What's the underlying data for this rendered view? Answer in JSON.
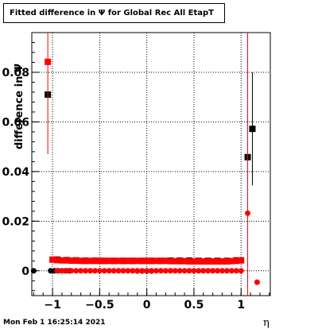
{
  "title": "Fitted difference in  Ψ  for Global Rec All EtapT",
  "timestamp": "Mon Feb  1 16:25:14 2021",
  "chart_data": {
    "type": "scatter",
    "title": "Fitted difference in  Ψ  for Global Rec All EtapT",
    "xlabel": "η",
    "ylabel": "difference in  Ψ",
    "xlim": [
      -1.22,
      1.31
    ],
    "ylim": [
      -0.01,
      0.096
    ],
    "grid": true,
    "x_ticks": [
      -1,
      -0.5,
      0,
      0.5,
      1
    ],
    "x_tick_labels": [
      "−1",
      "−0.5",
      "0",
      "0.5",
      "1"
    ],
    "y_ticks": [
      0,
      0.02,
      0.04,
      0.06,
      0.08
    ],
    "y_tick_labels": [
      "0",
      "0.02",
      "0.04",
      "0.06",
      "0.08"
    ],
    "series": [
      {
        "color": "#000000",
        "marker": "square",
        "points": [
          {
            "x": -1.05,
            "y": 0.071,
            "err": 0.0
          },
          {
            "x": -0.95,
            "y": 0.0045,
            "err": 0.0003
          },
          {
            "x": -0.85,
            "y": 0.0043,
            "err": 0.0003
          },
          {
            "x": -0.75,
            "y": 0.0042,
            "err": 0.0003
          },
          {
            "x": -0.65,
            "y": 0.0041,
            "err": 0.0003
          },
          {
            "x": -0.55,
            "y": 0.0041,
            "err": 0.0003
          },
          {
            "x": -0.45,
            "y": 0.004,
            "err": 0.0003
          },
          {
            "x": -0.35,
            "y": 0.004,
            "err": 0.0003
          },
          {
            "x": -0.25,
            "y": 0.004,
            "err": 0.0003
          },
          {
            "x": -0.15,
            "y": 0.004,
            "err": 0.0003
          },
          {
            "x": -0.05,
            "y": 0.004,
            "err": 0.0003
          },
          {
            "x": 0.05,
            "y": 0.004,
            "err": 0.0003
          },
          {
            "x": 0.15,
            "y": 0.004,
            "err": 0.0003
          },
          {
            "x": 0.25,
            "y": 0.0041,
            "err": 0.0003
          },
          {
            "x": 0.35,
            "y": 0.0041,
            "err": 0.0003
          },
          {
            "x": 0.45,
            "y": 0.0041,
            "err": 0.0003
          },
          {
            "x": 0.55,
            "y": 0.004,
            "err": 0.0003
          },
          {
            "x": 0.65,
            "y": 0.004,
            "err": 0.0003
          },
          {
            "x": 0.75,
            "y": 0.004,
            "err": 0.0003
          },
          {
            "x": 0.85,
            "y": 0.004,
            "err": 0.0003
          },
          {
            "x": 0.95,
            "y": 0.0042,
            "err": 0.0003
          },
          {
            "x": 1.07,
            "y": 0.0458,
            "err": 0.0
          },
          {
            "x": 1.12,
            "y": 0.0572,
            "err": 0.0228
          }
        ]
      },
      {
        "color": "#000000",
        "marker": "circle",
        "points": [
          {
            "x": -1.2,
            "y": 0.0,
            "err": 0.0
          },
          {
            "x": -1.02,
            "y": 0.0,
            "err": 0.0
          },
          {
            "x": -0.98,
            "y": 0.0,
            "err": 0.0
          },
          {
            "x": -0.94,
            "y": 0.0,
            "err": 0.0
          },
          {
            "x": -0.9,
            "y": 0.0,
            "err": 0.0
          },
          {
            "x": -0.86,
            "y": 0.0,
            "err": 0.0
          },
          {
            "x": -0.82,
            "y": 0.0,
            "err": 0.0
          },
          {
            "x": -0.1,
            "y": -0.0001,
            "err": 0.0
          },
          {
            "x": -0.05,
            "y": -0.0001,
            "err": 0.0
          },
          {
            "x": 0.0,
            "y": -0.0001,
            "err": 0.0
          },
          {
            "x": 0.05,
            "y": -0.0001,
            "err": 0.0
          }
        ]
      },
      {
        "color": "#ff0000",
        "marker": "square",
        "points": [
          {
            "x": -1.05,
            "y": 0.0842,
            "err": 0.0372
          },
          {
            "x": -1.0,
            "y": 0.0045,
            "err": 0.0
          },
          {
            "x": -0.95,
            "y": 0.0043,
            "err": 0.0
          },
          {
            "x": -0.9,
            "y": 0.0042,
            "err": 0.0
          },
          {
            "x": -0.85,
            "y": 0.0042,
            "err": 0.0
          },
          {
            "x": -0.8,
            "y": 0.0041,
            "err": 0.0
          },
          {
            "x": -0.75,
            "y": 0.0041,
            "err": 0.0
          },
          {
            "x": -0.7,
            "y": 0.004,
            "err": 0.0
          },
          {
            "x": -0.65,
            "y": 0.004,
            "err": 0.0
          },
          {
            "x": -0.6,
            "y": 0.004,
            "err": 0.0
          },
          {
            "x": -0.55,
            "y": 0.004,
            "err": 0.0
          },
          {
            "x": -0.5,
            "y": 0.004,
            "err": 0.0
          },
          {
            "x": -0.45,
            "y": 0.004,
            "err": 0.0
          },
          {
            "x": -0.4,
            "y": 0.004,
            "err": 0.0
          },
          {
            "x": -0.35,
            "y": 0.004,
            "err": 0.0
          },
          {
            "x": -0.3,
            "y": 0.004,
            "err": 0.0
          },
          {
            "x": -0.25,
            "y": 0.004,
            "err": 0.0
          },
          {
            "x": -0.2,
            "y": 0.004,
            "err": 0.0
          },
          {
            "x": -0.15,
            "y": 0.004,
            "err": 0.0
          },
          {
            "x": -0.1,
            "y": 0.004,
            "err": 0.0
          },
          {
            "x": -0.05,
            "y": 0.004,
            "err": 0.0
          },
          {
            "x": 0.0,
            "y": 0.004,
            "err": 0.0
          },
          {
            "x": 0.05,
            "y": 0.004,
            "err": 0.0
          },
          {
            "x": 0.1,
            "y": 0.004,
            "err": 0.0
          },
          {
            "x": 0.15,
            "y": 0.004,
            "err": 0.0
          },
          {
            "x": 0.2,
            "y": 0.004,
            "err": 0.0
          },
          {
            "x": 0.25,
            "y": 0.0039,
            "err": 0.0
          },
          {
            "x": 0.3,
            "y": 0.0039,
            "err": 0.0
          },
          {
            "x": 0.35,
            "y": 0.0039,
            "err": 0.0
          },
          {
            "x": 0.4,
            "y": 0.0039,
            "err": 0.0
          },
          {
            "x": 0.45,
            "y": 0.0038,
            "err": 0.0
          },
          {
            "x": 0.5,
            "y": 0.0038,
            "err": 0.0
          },
          {
            "x": 0.55,
            "y": 0.0038,
            "err": 0.0
          },
          {
            "x": 0.6,
            "y": 0.0038,
            "err": 0.0
          },
          {
            "x": 0.65,
            "y": 0.0038,
            "err": 0.0
          },
          {
            "x": 0.7,
            "y": 0.0038,
            "err": 0.0
          },
          {
            "x": 0.75,
            "y": 0.0038,
            "err": 0.0
          },
          {
            "x": 0.8,
            "y": 0.0038,
            "err": 0.0
          },
          {
            "x": 0.85,
            "y": 0.0038,
            "err": 0.0
          },
          {
            "x": 0.9,
            "y": 0.0039,
            "err": 0.0
          },
          {
            "x": 0.95,
            "y": 0.004,
            "err": 0.0
          },
          {
            "x": 1.0,
            "y": 0.0042,
            "err": 0.0
          }
        ]
      },
      {
        "color": "#ff0000",
        "marker": "circle",
        "points": [
          {
            "x": -0.95,
            "y": 0.0,
            "err": 0.0
          },
          {
            "x": -0.9,
            "y": 0.0,
            "err": 0.0
          },
          {
            "x": -0.85,
            "y": 0.0,
            "err": 0.0
          },
          {
            "x": -0.8,
            "y": 0.0,
            "err": 0.0
          },
          {
            "x": -0.75,
            "y": 0.0,
            "err": 0.0
          },
          {
            "x": -0.7,
            "y": 0.0,
            "err": 0.0
          },
          {
            "x": -0.65,
            "y": 0.0,
            "err": 0.0
          },
          {
            "x": -0.6,
            "y": 0.0,
            "err": 0.0
          },
          {
            "x": -0.55,
            "y": 0.0,
            "err": 0.0
          },
          {
            "x": -0.5,
            "y": 0.0,
            "err": 0.0
          },
          {
            "x": -0.45,
            "y": 0.0,
            "err": 0.0
          },
          {
            "x": -0.4,
            "y": 0.0,
            "err": 0.0
          },
          {
            "x": -0.35,
            "y": 0.0,
            "err": 0.0
          },
          {
            "x": -0.3,
            "y": 0.0,
            "err": 0.0
          },
          {
            "x": -0.25,
            "y": 0.0,
            "err": 0.0
          },
          {
            "x": -0.2,
            "y": 0.0,
            "err": 0.0
          },
          {
            "x": -0.15,
            "y": 0.0,
            "err": 0.0
          },
          {
            "x": -0.1,
            "y": 0.0,
            "err": 0.0
          },
          {
            "x": -0.05,
            "y": 0.0,
            "err": 0.0
          },
          {
            "x": 0.0,
            "y": 0.0,
            "err": 0.0
          },
          {
            "x": 0.05,
            "y": 0.0,
            "err": 0.0
          },
          {
            "x": 0.1,
            "y": 0.0,
            "err": 0.0
          },
          {
            "x": 0.15,
            "y": 0.0,
            "err": 0.0
          },
          {
            "x": 0.2,
            "y": 0.0,
            "err": 0.0
          },
          {
            "x": 0.25,
            "y": 0.0,
            "err": 0.0
          },
          {
            "x": 0.3,
            "y": 0.0,
            "err": 0.0
          },
          {
            "x": 0.35,
            "y": 0.0,
            "err": 0.0
          },
          {
            "x": 0.4,
            "y": 0.0,
            "err": 0.0
          },
          {
            "x": 0.45,
            "y": 0.0,
            "err": 0.0
          },
          {
            "x": 0.5,
            "y": 0.0,
            "err": 0.0
          },
          {
            "x": 0.55,
            "y": 0.0,
            "err": 0.0
          },
          {
            "x": 0.6,
            "y": 0.0,
            "err": 0.0
          },
          {
            "x": 0.65,
            "y": 0.0,
            "err": 0.0
          },
          {
            "x": 0.7,
            "y": 0.0,
            "err": 0.0
          },
          {
            "x": 0.75,
            "y": 0.0,
            "err": 0.0
          },
          {
            "x": 0.8,
            "y": 0.0,
            "err": 0.0
          },
          {
            "x": 0.85,
            "y": 0.0,
            "err": 0.0
          },
          {
            "x": 0.9,
            "y": 0.0,
            "err": 0.0
          },
          {
            "x": 0.95,
            "y": 0.0,
            "err": 0.0
          },
          {
            "x": 1.0,
            "y": 0.0,
            "err": 0.0
          },
          {
            "x": 1.07,
            "y": 0.0232,
            "err": 0.0768
          },
          {
            "x": 1.17,
            "y": -0.0046,
            "err": 0.0
          }
        ]
      }
    ]
  }
}
